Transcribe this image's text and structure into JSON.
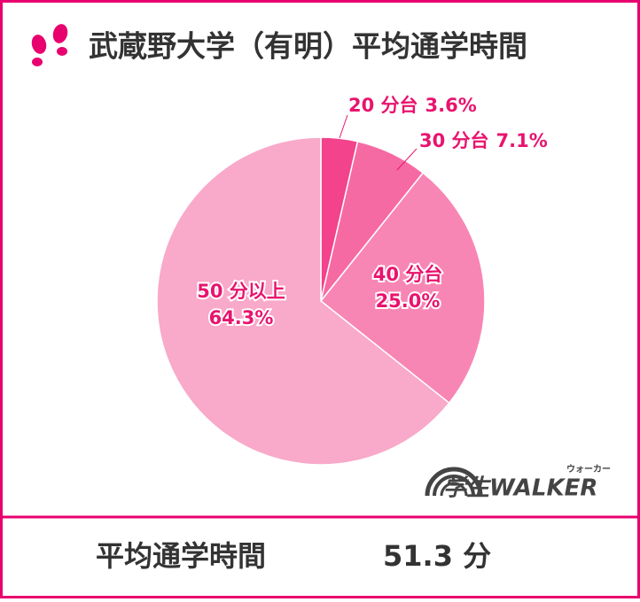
{
  "chart_data": {
    "type": "pie",
    "title": "武蔵野大学（有明）平均通学時間",
    "categories": [
      "20 分台",
      "30 分台",
      "40 分台",
      "50 分以上"
    ],
    "values": [
      3.6,
      7.1,
      25.0,
      64.3
    ],
    "value_labels": [
      "3.6%",
      "7.1%",
      "25.0%",
      "64.3%"
    ],
    "colors": [
      "#f2438c",
      "#f66aa3",
      "#f886b4",
      "#f9a9c9"
    ],
    "label_color": "#e8146e"
  },
  "footer": {
    "label": "平均通学時間",
    "value": "51.3 分"
  },
  "logo": {
    "text": "学生WALKER",
    "kana": "ウォーカー"
  }
}
